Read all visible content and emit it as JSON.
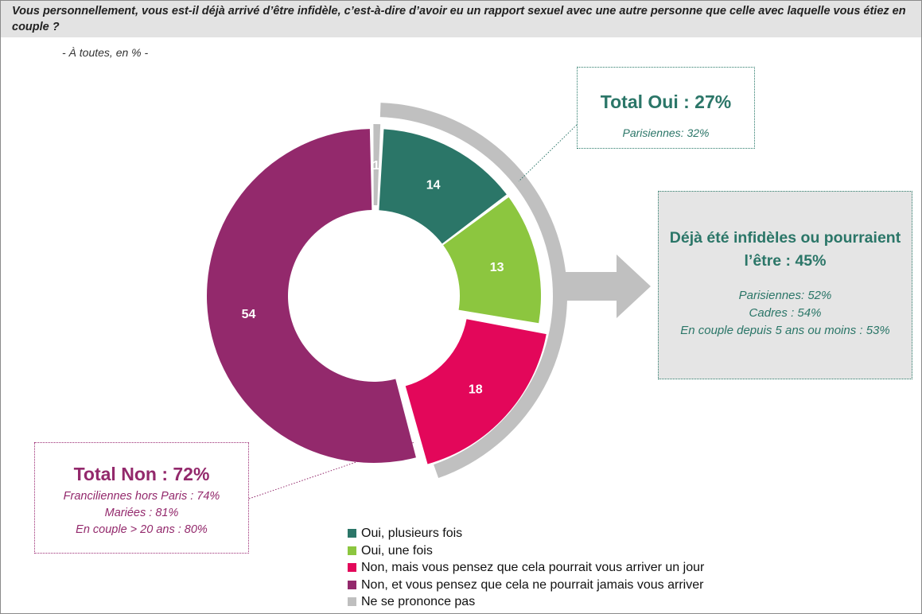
{
  "question": "Vous personnellement, vous est-il déjà arrivé d’être infidèle, c’est-à-dire d’avoir eu un rapport sexuel avec une autre personne que celle avec laquelle vous étiez en couple ?",
  "base": "- À toutes, en % -",
  "chart_data": {
    "type": "pie",
    "subtype": "donut",
    "categories": [
      "Oui, plusieurs fois",
      "Oui, une fois",
      "Non, mais vous pensez que cela pourrait vous arriver un jour",
      "Non, et vous pensez que cela ne pourrait jamais vous arriver",
      "Ne se prononce pas"
    ],
    "values": [
      14,
      13,
      18,
      54,
      1
    ],
    "colors": [
      "#2b7668",
      "#8cc63f",
      "#e3075a",
      "#93296c",
      "#bfbfbf"
    ],
    "legend_position": "bottom"
  },
  "callouts": {
    "oui": {
      "title": "Total Oui : 27%",
      "details": [
        "Parisiennes: 32%"
      ]
    },
    "potential": {
      "title": "Déjà été infidèles ou pourraient l’être :  45%",
      "details": [
        "Parisiennes: 52%",
        "Cadres : 54%",
        "En couple depuis 5 ans ou moins : 53%"
      ]
    },
    "non": {
      "title": "Total Non : 72%",
      "details": [
        "Franciliennes hors Paris : 74%",
        "Mariées : 81%",
        "En couple > 20 ans : 80%"
      ]
    }
  },
  "style": {
    "bracket_color": "#c0c0c0",
    "oui_color": "#2b7668",
    "non_color": "#93296c"
  }
}
